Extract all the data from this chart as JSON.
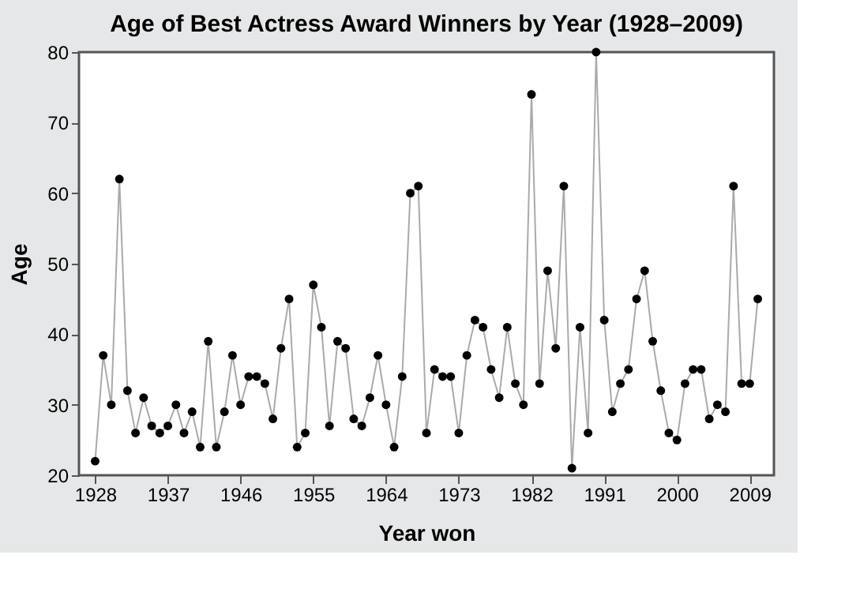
{
  "chart_data": {
    "type": "line",
    "title": "Age of Best Actress Award Winners by Year (1928–2009)",
    "xlabel": "Year won",
    "ylabel": "Age",
    "x": [
      1928,
      1929,
      1930,
      1931,
      1932,
      1933,
      1934,
      1935,
      1936,
      1937,
      1938,
      1939,
      1940,
      1941,
      1942,
      1943,
      1944,
      1945,
      1946,
      1947,
      1948,
      1949,
      1950,
      1951,
      1952,
      1953,
      1954,
      1955,
      1956,
      1957,
      1958,
      1959,
      1960,
      1961,
      1962,
      1963,
      1964,
      1965,
      1966,
      1967,
      1968,
      1969,
      1970,
      1971,
      1972,
      1973,
      1974,
      1975,
      1976,
      1977,
      1978,
      1979,
      1980,
      1981,
      1982,
      1983,
      1984,
      1985,
      1986,
      1987,
      1988,
      1989,
      1990,
      1991,
      1992,
      1993,
      1994,
      1995,
      1996,
      1997,
      1998,
      1999,
      2000,
      2001,
      2002,
      2003,
      2004,
      2005,
      2006,
      2007,
      2008,
      2009,
      2010
    ],
    "series": [
      {
        "color": "#aaaaaa",
        "values": [
          22,
          37,
          30,
          62,
          32,
          26,
          31,
          27,
          26,
          27,
          30,
          26,
          29,
          24,
          39,
          24,
          29,
          37,
          30,
          34,
          34,
          33,
          28,
          38,
          45,
          24,
          26,
          47,
          41,
          27,
          39,
          38,
          28,
          27,
          31,
          37,
          30,
          24,
          34,
          60,
          61,
          26,
          35,
          34,
          34,
          26,
          37,
          42,
          41,
          35,
          31,
          41,
          33,
          30,
          74,
          33,
          49,
          38,
          61,
          21,
          41,
          26,
          80,
          42,
          29,
          33,
          35,
          45,
          49,
          39,
          32,
          26,
          25,
          33,
          35,
          35,
          28,
          30,
          29,
          61,
          33,
          33,
          45
        ]
      }
    ],
    "xlim": [
      1926,
      2012
    ],
    "xticks": [
      1928,
      1937,
      1946,
      1955,
      1964,
      1973,
      1982,
      1991,
      2000,
      2009
    ],
    "ylim": [
      20,
      80
    ],
    "yticks": [
      20,
      30,
      40,
      50,
      60,
      70,
      80
    ],
    "marker": "circle",
    "grid": false
  }
}
